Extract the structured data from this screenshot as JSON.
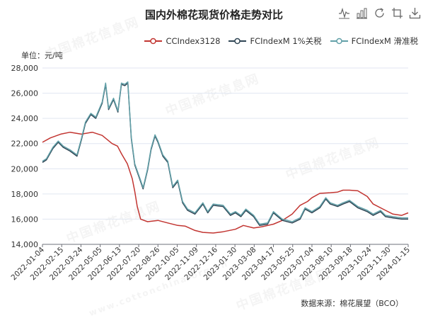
{
  "page": {
    "title": "国内外棉花现货价格走势对比",
    "unit_label": "单位：元/吨",
    "source_label": "数据来源：棉花展望（BCO）",
    "watermark_cn": "中国棉花信息网",
    "watermark_en": "www.cottonchina.org.cn"
  },
  "toolbox": [
    {
      "name": "line-icon"
    },
    {
      "name": "bar-icon"
    },
    {
      "name": "refresh-icon"
    },
    {
      "name": "crop-icon"
    },
    {
      "name": "download-icon"
    }
  ],
  "chart_data": {
    "type": "line",
    "title": "国内外棉花现货价格走势对比",
    "ylabel": "单位：元/吨",
    "ylim": [
      14000,
      28000
    ],
    "yticks": [
      14000,
      16000,
      18000,
      20000,
      22000,
      24000,
      26000,
      28000
    ],
    "ytick_labels": [
      "14,000",
      "16,000",
      "18,000",
      "20,000",
      "22,000",
      "24,000",
      "26,000",
      "28,000"
    ],
    "xlim": [
      "2022-01-04",
      "2024-01-15"
    ],
    "xtick_labels": [
      "2022-01-04",
      "2022-02-15",
      "2022-03-24",
      "2022-05-05",
      "2022-06-13",
      "2022-07-20",
      "2022-08-26",
      "2022-10-05",
      "2022-11-09",
      "2022-12-16",
      "2023-01-30",
      "2023-03-08",
      "2023-04-17",
      "2023-05-25",
      "2023-07-04",
      "2023-08-10",
      "2023-09-18",
      "2023-10-24",
      "2023-11-30",
      "2024-01-15"
    ],
    "grid": true,
    "legend_position": "top-right",
    "series": [
      {
        "name": "CCIndex3128",
        "color": "#c23531",
        "points": [
          [
            "2022-01-04",
            22100
          ],
          [
            "2022-01-20",
            22450
          ],
          [
            "2022-02-10",
            22750
          ],
          [
            "2022-03-01",
            22900
          ],
          [
            "2022-03-24",
            22750
          ],
          [
            "2022-04-15",
            22900
          ],
          [
            "2022-05-05",
            22650
          ],
          [
            "2022-05-25",
            22000
          ],
          [
            "2022-06-05",
            21800
          ],
          [
            "2022-06-13",
            21200
          ],
          [
            "2022-06-25",
            20400
          ],
          [
            "2022-07-05",
            19200
          ],
          [
            "2022-07-10",
            18200
          ],
          [
            "2022-07-15",
            17000
          ],
          [
            "2022-07-22",
            16000
          ],
          [
            "2022-08-05",
            15800
          ],
          [
            "2022-08-26",
            15900
          ],
          [
            "2022-09-15",
            15700
          ],
          [
            "2022-10-05",
            15500
          ],
          [
            "2022-10-20",
            15450
          ],
          [
            "2022-11-09",
            15100
          ],
          [
            "2022-11-25",
            14950
          ],
          [
            "2022-12-16",
            14900
          ],
          [
            "2023-01-05",
            15000
          ],
          [
            "2023-01-30",
            15200
          ],
          [
            "2023-02-15",
            15500
          ],
          [
            "2023-03-08",
            15300
          ],
          [
            "2023-03-25",
            15400
          ],
          [
            "2023-04-17",
            15600
          ],
          [
            "2023-05-05",
            15900
          ],
          [
            "2023-05-25",
            16400
          ],
          [
            "2023-06-10",
            17100
          ],
          [
            "2023-06-25",
            17400
          ],
          [
            "2023-07-04",
            17700
          ],
          [
            "2023-07-20",
            18050
          ],
          [
            "2023-08-10",
            18100
          ],
          [
            "2023-08-25",
            18150
          ],
          [
            "2023-09-05",
            18300
          ],
          [
            "2023-09-18",
            18300
          ],
          [
            "2023-10-05",
            18250
          ],
          [
            "2023-10-24",
            17800
          ],
          [
            "2023-11-05",
            17200
          ],
          [
            "2023-11-30",
            16700
          ],
          [
            "2023-12-15",
            16400
          ],
          [
            "2024-01-02",
            16300
          ],
          [
            "2024-01-15",
            16500
          ]
        ]
      },
      {
        "name": "FCIndexM 1%关税",
        "color": "#2f4554",
        "points": [
          [
            "2022-01-04",
            20500
          ],
          [
            "2022-01-12",
            20700
          ],
          [
            "2022-01-25",
            21600
          ],
          [
            "2022-02-05",
            22100
          ],
          [
            "2022-02-15",
            21700
          ],
          [
            "2022-03-01",
            21400
          ],
          [
            "2022-03-15",
            21000
          ],
          [
            "2022-03-24",
            22300
          ],
          [
            "2022-04-01",
            23600
          ],
          [
            "2022-04-12",
            24300
          ],
          [
            "2022-04-22",
            24000
          ],
          [
            "2022-05-05",
            25200
          ],
          [
            "2022-05-12",
            26700
          ],
          [
            "2022-05-18",
            24700
          ],
          [
            "2022-05-28",
            25500
          ],
          [
            "2022-06-06",
            24500
          ],
          [
            "2022-06-13",
            26700
          ],
          [
            "2022-06-20",
            26600
          ],
          [
            "2022-06-26",
            26800
          ],
          [
            "2022-07-03",
            22400
          ],
          [
            "2022-07-10",
            20300
          ],
          [
            "2022-07-20",
            19200
          ],
          [
            "2022-07-27",
            18400
          ],
          [
            "2022-08-05",
            19900
          ],
          [
            "2022-08-12",
            21500
          ],
          [
            "2022-08-20",
            22600
          ],
          [
            "2022-08-26",
            22100
          ],
          [
            "2022-09-05",
            21000
          ],
          [
            "2022-09-15",
            20500
          ],
          [
            "2022-09-25",
            18500
          ],
          [
            "2022-10-05",
            19000
          ],
          [
            "2022-10-15",
            17300
          ],
          [
            "2022-10-25",
            16700
          ],
          [
            "2022-11-09",
            16400
          ],
          [
            "2022-11-25",
            17200
          ],
          [
            "2022-12-05",
            16500
          ],
          [
            "2022-12-16",
            17100
          ],
          [
            "2023-01-05",
            17000
          ],
          [
            "2023-01-20",
            16300
          ],
          [
            "2023-01-30",
            16500
          ],
          [
            "2023-02-10",
            16200
          ],
          [
            "2023-02-20",
            16700
          ],
          [
            "2023-03-08",
            16200
          ],
          [
            "2023-03-20",
            15500
          ],
          [
            "2023-04-05",
            15600
          ],
          [
            "2023-04-17",
            16500
          ],
          [
            "2023-05-05",
            15900
          ],
          [
            "2023-05-25",
            15700
          ],
          [
            "2023-06-10",
            16000
          ],
          [
            "2023-06-20",
            16800
          ],
          [
            "2023-07-04",
            16500
          ],
          [
            "2023-07-20",
            16900
          ],
          [
            "2023-08-01",
            17600
          ],
          [
            "2023-08-10",
            17200
          ],
          [
            "2023-08-25",
            17000
          ],
          [
            "2023-09-05",
            17200
          ],
          [
            "2023-09-18",
            17400
          ],
          [
            "2023-10-05",
            16900
          ],
          [
            "2023-10-24",
            16600
          ],
          [
            "2023-11-05",
            16300
          ],
          [
            "2023-11-20",
            16600
          ],
          [
            "2023-11-30",
            16200
          ],
          [
            "2023-12-15",
            16100
          ],
          [
            "2024-01-02",
            16000
          ],
          [
            "2024-01-15",
            16000
          ]
        ]
      },
      {
        "name": "FCIndexM 滑准税",
        "color": "#61a0a8",
        "points": [
          [
            "2022-01-04",
            20600
          ],
          [
            "2022-01-12",
            20800
          ],
          [
            "2022-01-25",
            21700
          ],
          [
            "2022-02-05",
            22200
          ],
          [
            "2022-02-15",
            21800
          ],
          [
            "2022-03-01",
            21500
          ],
          [
            "2022-03-15",
            21100
          ],
          [
            "2022-03-24",
            22400
          ],
          [
            "2022-04-01",
            23700
          ],
          [
            "2022-04-12",
            24400
          ],
          [
            "2022-04-22",
            24100
          ],
          [
            "2022-05-05",
            25300
          ],
          [
            "2022-05-12",
            26800
          ],
          [
            "2022-05-18",
            24800
          ],
          [
            "2022-05-28",
            25600
          ],
          [
            "2022-06-06",
            24600
          ],
          [
            "2022-06-13",
            26800
          ],
          [
            "2022-06-20",
            26700
          ],
          [
            "2022-06-26",
            26900
          ],
          [
            "2022-07-03",
            22500
          ],
          [
            "2022-07-10",
            20400
          ],
          [
            "2022-07-20",
            19300
          ],
          [
            "2022-07-27",
            18500
          ],
          [
            "2022-08-05",
            20000
          ],
          [
            "2022-08-12",
            21600
          ],
          [
            "2022-08-20",
            22700
          ],
          [
            "2022-08-26",
            22200
          ],
          [
            "2022-09-05",
            21100
          ],
          [
            "2022-09-15",
            20600
          ],
          [
            "2022-09-25",
            18600
          ],
          [
            "2022-10-05",
            19100
          ],
          [
            "2022-10-15",
            17400
          ],
          [
            "2022-10-25",
            16800
          ],
          [
            "2022-11-09",
            16500
          ],
          [
            "2022-11-25",
            17300
          ],
          [
            "2022-12-05",
            16600
          ],
          [
            "2022-12-16",
            17200
          ],
          [
            "2023-01-05",
            17100
          ],
          [
            "2023-01-20",
            16400
          ],
          [
            "2023-01-30",
            16600
          ],
          [
            "2023-02-10",
            16300
          ],
          [
            "2023-02-20",
            16800
          ],
          [
            "2023-03-08",
            16300
          ],
          [
            "2023-03-20",
            15600
          ],
          [
            "2023-04-05",
            15700
          ],
          [
            "2023-04-17",
            16600
          ],
          [
            "2023-05-05",
            16000
          ],
          [
            "2023-05-25",
            15800
          ],
          [
            "2023-06-10",
            16100
          ],
          [
            "2023-06-20",
            16900
          ],
          [
            "2023-07-04",
            16600
          ],
          [
            "2023-07-20",
            17000
          ],
          [
            "2023-08-01",
            17700
          ],
          [
            "2023-08-10",
            17300
          ],
          [
            "2023-08-25",
            17100
          ],
          [
            "2023-09-05",
            17300
          ],
          [
            "2023-09-18",
            17500
          ],
          [
            "2023-10-05",
            17000
          ],
          [
            "2023-10-24",
            16700
          ],
          [
            "2023-11-05",
            16400
          ],
          [
            "2023-11-20",
            16700
          ],
          [
            "2023-11-30",
            16300
          ],
          [
            "2023-12-15",
            16200
          ],
          [
            "2024-01-02",
            16100
          ],
          [
            "2024-01-15",
            16100
          ]
        ]
      }
    ]
  }
}
